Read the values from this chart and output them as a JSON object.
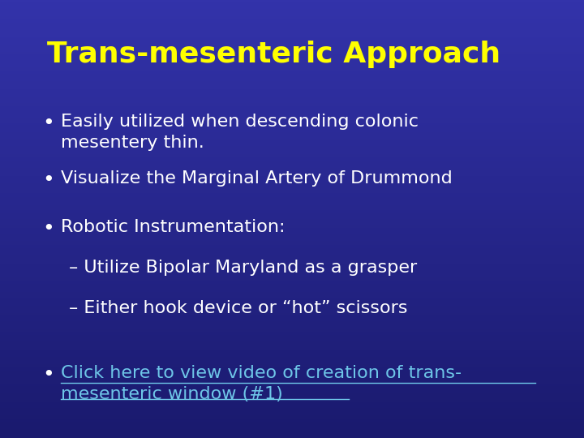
{
  "title": "Trans-mesenteric Approach",
  "title_color": "#FFFF00",
  "title_fontsize": 26,
  "background_top": "#3333AA",
  "background_bottom": "#1A1A6E",
  "text_color": "#FFFFFF",
  "link_color": "#6EC6E8",
  "bullet_items": [
    {
      "text": "Easily utilized when descending colonic\nmesentery thin.",
      "indent": 0,
      "bullet": true,
      "link": false
    },
    {
      "text": "Visualize the Marginal Artery of Drummond",
      "indent": 0,
      "bullet": true,
      "link": false
    },
    {
      "text": "Robotic Instrumentation:",
      "indent": 0,
      "bullet": true,
      "link": false
    },
    {
      "text": "– Utilize Bipolar Maryland as a grasper",
      "indent": 1,
      "bullet": false,
      "link": false
    },
    {
      "text": "– Either hook device or “hot” scissors",
      "indent": 1,
      "bullet": false,
      "link": false
    },
    {
      "text": "Click here to view video of creation of trans-\nmesenteric window (#1)",
      "indent": 0,
      "bullet": true,
      "link": true
    }
  ],
  "body_fontsize": 16,
  "figsize": [
    7.2,
    5.4
  ],
  "dpi": 100
}
